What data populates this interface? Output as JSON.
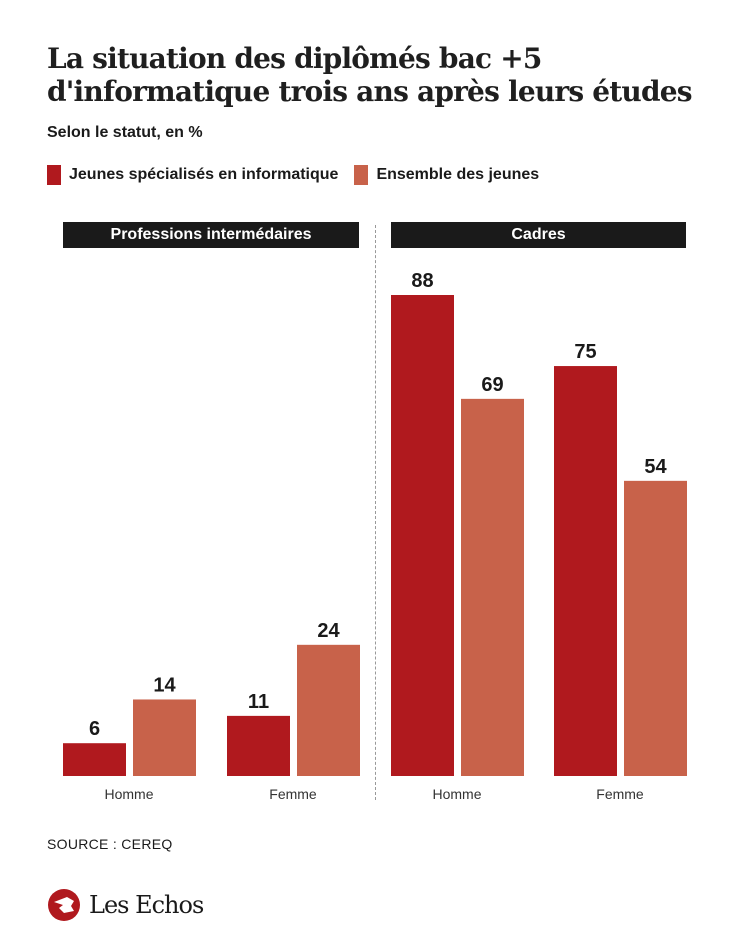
{
  "title_line1": "La situation des diplômés bac +5",
  "title_line2": "d'informatique trois ans après leurs études",
  "subtitle": "Selon le statut, en %",
  "legend": [
    {
      "label": "Jeunes spécialisés en informatique",
      "color": "#b0191e"
    },
    {
      "label": "Ensemble des jeunes",
      "color": "#c8624a"
    }
  ],
  "source": "SOURCE : CEREQ",
  "logo": "Les Echos",
  "chart_data": [
    {
      "type": "bar",
      "title": "Professions intermédaires",
      "categories": [
        "Homme",
        "Femme"
      ],
      "series": [
        {
          "name": "Jeunes spécialisés en informatique",
          "values": [
            6,
            11
          ]
        },
        {
          "name": "Ensemble des jeunes",
          "values": [
            14,
            24
          ]
        }
      ],
      "ylim": [
        0,
        100
      ],
      "grid": false
    },
    {
      "type": "bar",
      "title": "Cadres",
      "categories": [
        "Homme",
        "Femme"
      ],
      "series": [
        {
          "name": "Jeunes spécialisés en informatique",
          "values": [
            88,
            75
          ]
        },
        {
          "name": "Ensemble des jeunes",
          "values": [
            69,
            54
          ]
        }
      ],
      "ylim": [
        0,
        100
      ],
      "grid": false
    }
  ]
}
